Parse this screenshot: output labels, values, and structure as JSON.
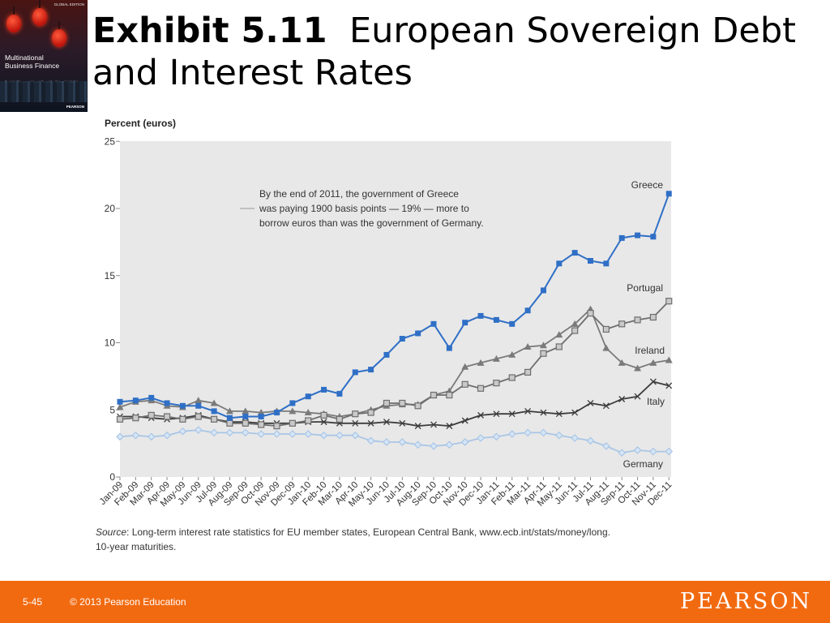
{
  "cover": {
    "edition": "GLOBAL EDITION",
    "title_line1": "Multinational",
    "title_line2": "Business Finance",
    "authors": "David K. Eiteman · Arthur I. Stonehill · Michael H. Moffett",
    "publisher": "PEARSON"
  },
  "slide": {
    "title_bold": "Exhibit 5.11",
    "title_rest": "European Sovereign Debt and Interest Rates"
  },
  "footer": {
    "page": "5-45",
    "copyright": "© 2013 Pearson Education",
    "logo": "PEARSON"
  },
  "chart_data": {
    "type": "line",
    "ylabel": "Percent (euros)",
    "ylim": [
      0,
      25
    ],
    "yticks": [
      0,
      5,
      10,
      15,
      20,
      25
    ],
    "grid": false,
    "categories": [
      "Jan-09",
      "Feb-09",
      "Mar-09",
      "Apr-09",
      "May-09",
      "Jun-09",
      "Jul-09",
      "Aug-09",
      "Sep-09",
      "Oct-09",
      "Nov-09",
      "Dec-09",
      "Jan-10",
      "Feb-10",
      "Mar-10",
      "Apr-10",
      "May-10",
      "Jun-10",
      "Jul-10",
      "Aug-10",
      "Sep-10",
      "Oct-10",
      "Nov-10",
      "Dec-10",
      "Jan-11",
      "Feb-11",
      "Mar-11",
      "Apr-11",
      "May-11",
      "Jun-11",
      "Jul-11",
      "Aug-11",
      "Sep-11",
      "Oct-11",
      "Nov-11",
      "Dec-11"
    ],
    "annotation": [
      "By the end of 2011, the government of Greece",
      "was paying 1900 basis points — 19% — more to",
      "borrow euros than was the government of Germany."
    ],
    "series": [
      {
        "name": "Greece",
        "color": "#2f6fc6",
        "marker": "square",
        "values": [
          5.6,
          5.7,
          5.9,
          5.5,
          5.3,
          5.3,
          4.9,
          4.4,
          4.5,
          4.5,
          4.8,
          5.5,
          6.0,
          6.5,
          6.2,
          7.8,
          8.0,
          9.1,
          10.3,
          10.7,
          11.4,
          9.6,
          11.5,
          12.0,
          11.7,
          11.4,
          12.4,
          13.9,
          15.9,
          16.7,
          16.1,
          15.9,
          17.8,
          18.0,
          17.9,
          21.1
        ]
      },
      {
        "name": "Portugal",
        "color": "#6e6e6e",
        "marker": "square-open",
        "values": [
          4.3,
          4.4,
          4.6,
          4.5,
          4.3,
          4.5,
          4.3,
          4.0,
          4.0,
          3.9,
          3.8,
          4.0,
          4.2,
          4.6,
          4.3,
          4.7,
          4.8,
          5.5,
          5.5,
          5.3,
          6.1,
          6.1,
          6.9,
          6.6,
          7.0,
          7.4,
          7.8,
          9.2,
          9.7,
          10.9,
          12.2,
          11.0,
          11.4,
          11.7,
          11.9,
          13.1
        ]
      },
      {
        "name": "Ireland",
        "color": "#7a7a7a",
        "marker": "triangle",
        "values": [
          5.2,
          5.6,
          5.7,
          5.3,
          5.2,
          5.7,
          5.5,
          4.9,
          4.9,
          4.8,
          4.9,
          4.9,
          4.8,
          4.7,
          4.5,
          4.7,
          5.0,
          5.3,
          5.4,
          5.4,
          6.1,
          6.4,
          8.2,
          8.5,
          8.8,
          9.1,
          9.7,
          9.8,
          10.6,
          11.4,
          12.5,
          9.6,
          8.5,
          8.1,
          8.5,
          8.7
        ]
      },
      {
        "name": "Italy",
        "color": "#3c3c3c",
        "marker": "x",
        "values": [
          4.5,
          4.5,
          4.4,
          4.3,
          4.4,
          4.6,
          4.3,
          4.1,
          4.1,
          4.0,
          4.0,
          4.0,
          4.1,
          4.1,
          4.0,
          4.0,
          4.0,
          4.1,
          4.0,
          3.8,
          3.9,
          3.8,
          4.2,
          4.6,
          4.7,
          4.7,
          4.9,
          4.8,
          4.7,
          4.8,
          5.5,
          5.3,
          5.8,
          6.0,
          7.1,
          6.8
        ]
      },
      {
        "name": "Germany",
        "color": "#a9c6e6",
        "marker": "diamond-open",
        "values": [
          3.0,
          3.1,
          3.0,
          3.1,
          3.4,
          3.5,
          3.3,
          3.3,
          3.3,
          3.2,
          3.2,
          3.2,
          3.2,
          3.1,
          3.1,
          3.1,
          2.7,
          2.6,
          2.6,
          2.4,
          2.3,
          2.4,
          2.6,
          2.9,
          3.0,
          3.2,
          3.3,
          3.3,
          3.1,
          2.9,
          2.7,
          2.3,
          1.8,
          2.0,
          1.9,
          1.9
        ]
      }
    ]
  },
  "source": {
    "label": "Source",
    "text": ": Long-term interest rate statistics for EU member states, European Central Bank, www.ecb.int/stats/money/long.",
    "line2": "10-year maturities."
  }
}
